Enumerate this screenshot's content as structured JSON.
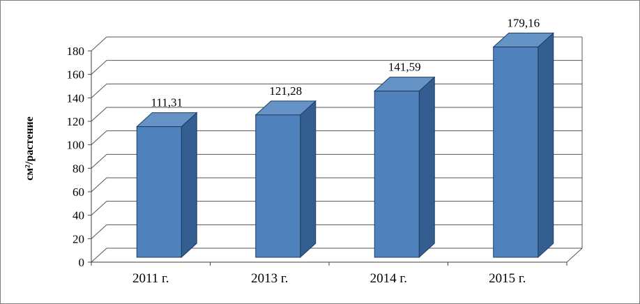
{
  "figure": {
    "background": "#ffffff",
    "border_color": "#7f7f7f"
  },
  "chart_data": {
    "type": "bar",
    "style": "3d-column",
    "title": "",
    "xlabel": "",
    "ylabel": "см²/растение",
    "categories": [
      "2011 г.",
      "2013 г.",
      "2014 г.",
      "2015 г."
    ],
    "values": [
      111.31,
      121.28,
      141.59,
      179.16
    ],
    "data_labels": [
      "111,31",
      "121,28",
      "141,59",
      "179,16"
    ],
    "ylim": [
      0,
      180
    ],
    "ytick_step": 20,
    "ytick_labels": [
      "0",
      "20",
      "40",
      "60",
      "80",
      "100",
      "120",
      "140",
      "160",
      "180"
    ],
    "grid": true,
    "legend": false,
    "bar_color": "#4f81bd",
    "bar_top_color": "#6593c6",
    "bar_side_color": "#345e8f",
    "bar_edge_color": "#1c3d63",
    "grid_color": "#555555",
    "axis_color": "#404040",
    "text_color": "#000000"
  }
}
